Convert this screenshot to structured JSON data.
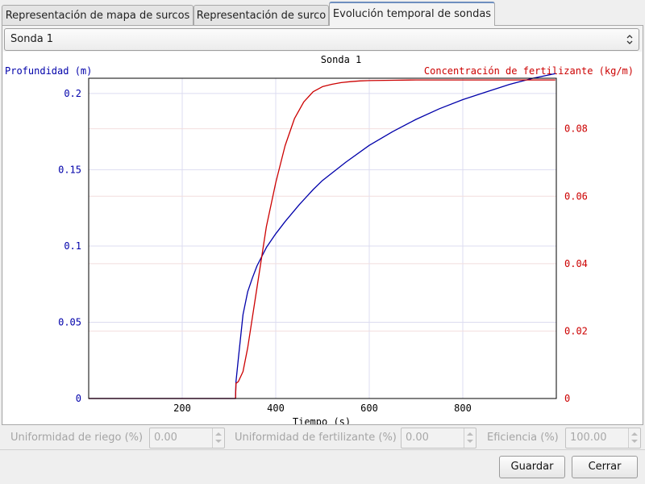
{
  "tabs": [
    {
      "label": "Representación de mapa de surcos",
      "active": false
    },
    {
      "label": "Representación de surco",
      "active": false
    },
    {
      "label": "Evolución temporal de sondas",
      "active": true
    }
  ],
  "probe_select": {
    "value": "Sonda 1"
  },
  "colors": {
    "left_axis": "#0000aa",
    "right_axis": "#cc0000",
    "grid": "#dcdcf0",
    "accent": "#6e8fbf"
  },
  "chart_data": {
    "type": "line",
    "title": "Sonda 1",
    "xlabel": "Tiempo (s)",
    "ylabel_left": "Profundidad (m)",
    "ylabel_right": "Concentración de fertilizante (kg/m)",
    "xlim": [
      0,
      1000
    ],
    "ylim_left": [
      0,
      0.21
    ],
    "ylim_right": [
      0,
      0.095
    ],
    "x_ticks": [
      "200",
      "400",
      "600",
      "800"
    ],
    "y_left_ticks": [
      "0",
      "0.05",
      "0.1",
      "0.15",
      "0.2"
    ],
    "y_right_ticks": [
      "0",
      "0.02",
      "0.04",
      "0.06",
      "0.08"
    ],
    "grid": true,
    "series": [
      {
        "axis": "left",
        "color": "#0000aa",
        "x": [
          0,
          314,
          315,
          320,
          330,
          340,
          350,
          360,
          370,
          380,
          400,
          420,
          450,
          480,
          500,
          550,
          600,
          650,
          700,
          750,
          800,
          850,
          900,
          950,
          998
        ],
        "y": [
          0,
          0,
          0.011,
          0.026,
          0.055,
          0.07,
          0.079,
          0.087,
          0.093,
          0.099,
          0.108,
          0.116,
          0.127,
          0.137,
          0.143,
          0.155,
          0.166,
          0.175,
          0.183,
          0.19,
          0.196,
          0.201,
          0.206,
          0.21,
          0.213
        ]
      },
      {
        "axis": "right",
        "color": "#cc0000",
        "x": [
          0,
          314,
          315,
          320,
          330,
          340,
          350,
          360,
          370,
          380,
          400,
          420,
          440,
          460,
          480,
          500,
          520,
          540,
          560,
          580,
          600,
          650,
          700,
          800,
          900,
          998
        ],
        "y": [
          0,
          0,
          0.0045,
          0.005,
          0.008,
          0.015,
          0.024,
          0.033,
          0.042,
          0.051,
          0.064,
          0.075,
          0.083,
          0.088,
          0.091,
          0.0925,
          0.0932,
          0.0937,
          0.094,
          0.0942,
          0.0943,
          0.0944,
          0.0945,
          0.0945,
          0.0945,
          0.0945
        ]
      }
    ]
  },
  "stats": [
    {
      "label": "Uniformidad de riego (%)",
      "value": "0.00"
    },
    {
      "label": "Uniformidad de fertilizante (%)",
      "value": "0.00"
    },
    {
      "label": "Eficiencia (%)",
      "value": "100.00"
    }
  ],
  "buttons": {
    "save": "Guardar",
    "close": "Cerrar"
  }
}
